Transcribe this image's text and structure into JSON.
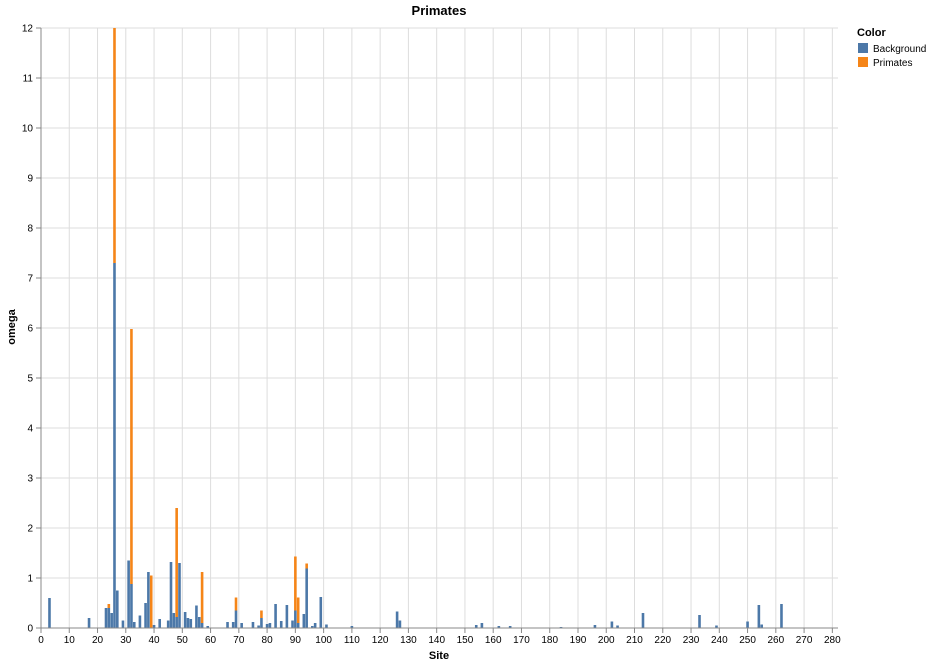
{
  "chart_data": {
    "type": "bar",
    "stacked": true,
    "title": "Primates",
    "xlabel": "Site",
    "ylabel": "omega",
    "xlim": [
      0,
      282
    ],
    "ylim": [
      0,
      12
    ],
    "x_ticks": [
      0,
      10,
      20,
      30,
      40,
      50,
      60,
      70,
      80,
      90,
      100,
      110,
      120,
      130,
      140,
      150,
      160,
      170,
      180,
      190,
      200,
      210,
      220,
      230,
      240,
      250,
      260,
      270,
      280
    ],
    "y_ticks": [
      0,
      1,
      2,
      3,
      4,
      5,
      6,
      7,
      8,
      9,
      10,
      11,
      12
    ],
    "grid": true,
    "legend": {
      "title": "Color",
      "position": "top-right"
    },
    "series": [
      {
        "name": "Background",
        "color": "#4c78a8",
        "x": [
          3,
          17,
          23,
          24,
          25,
          26,
          27,
          29,
          31,
          32,
          33,
          35,
          37,
          38,
          40,
          42,
          45,
          46,
          47,
          48,
          49,
          51,
          52,
          53,
          55,
          56,
          57,
          59,
          66,
          68,
          69,
          71,
          75,
          77,
          78,
          80,
          81,
          83,
          85,
          87,
          89,
          90,
          91,
          93,
          94,
          96,
          97,
          99,
          101,
          110,
          126,
          127,
          154,
          156,
          162,
          166,
          184,
          196,
          202,
          204,
          213,
          233,
          239,
          250,
          254,
          255,
          262
        ],
        "values": [
          0.6,
          0.2,
          0.4,
          0.4,
          0.3,
          7.3,
          0.75,
          0.15,
          1.35,
          0.88,
          0.12,
          0.25,
          0.5,
          1.12,
          0.06,
          0.18,
          0.15,
          1.32,
          0.3,
          0.22,
          1.3,
          0.32,
          0.2,
          0.18,
          0.45,
          0.22,
          0.1,
          0.04,
          0.12,
          0.12,
          0.35,
          0.1,
          0.12,
          0.05,
          0.2,
          0.08,
          0.1,
          0.48,
          0.14,
          0.46,
          0.15,
          0.35,
          0.1,
          0.28,
          1.19,
          0.04,
          0.1,
          0.62,
          0.07,
          0.04,
          0.33,
          0.15,
          0.06,
          0.1,
          0.04,
          0.04,
          0.02,
          0.06,
          0.13,
          0.05,
          0.3,
          0.26,
          0.05,
          0.13,
          0.46,
          0.07,
          0.48
        ]
      },
      {
        "name": "Primates",
        "color": "#f58518",
        "x": [
          24,
          26,
          32,
          39,
          48,
          57,
          69,
          78,
          90,
          91,
          94
        ],
        "values": [
          0.08,
          4.7,
          5.1,
          1.05,
          2.18,
          1.02,
          0.26,
          0.15,
          1.08,
          0.51,
          0.1
        ]
      }
    ]
  }
}
